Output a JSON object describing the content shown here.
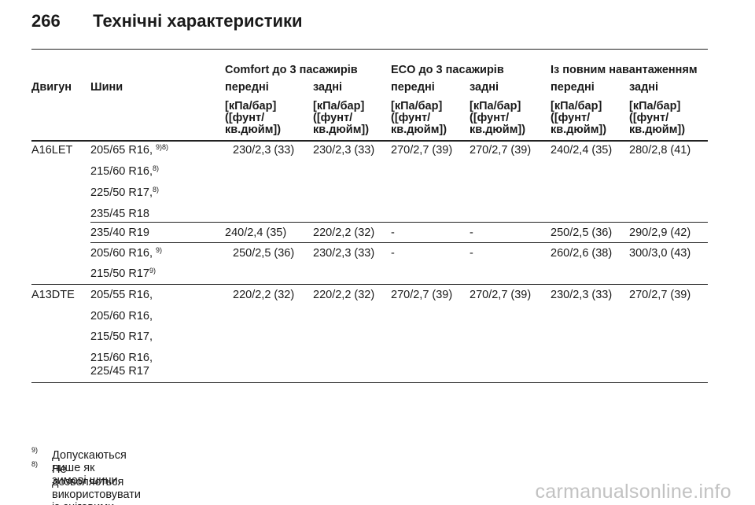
{
  "header": {
    "page_number": "266",
    "title": "Технічні характеристики"
  },
  "table": {
    "groups": [
      "Comfort до 3 пасажирів",
      "ECO до 3 пасажирів",
      "Із повним навантаженням"
    ],
    "col_engine": "Двигун",
    "col_tires": "Шини",
    "pos_front": "передні",
    "pos_rear": "задні",
    "unit_l1": "[кПа/бар]",
    "unit_l2": "([фунт/",
    "unit_l3": "кв.дюйм])",
    "sections": [
      {
        "engine": "A16LET",
        "tires": [
          {
            "size": "205/65 R16, ",
            "note": "9)8)"
          },
          {
            "size": "215/60 R16,",
            "note": "8)"
          },
          {
            "size": "225/50 R17,",
            "note": "8)"
          },
          {
            "size": "235/45 R18",
            "note": ""
          }
        ],
        "values": [
          "230/2,3 (33)",
          "230/2,3 (33)",
          "270/2,7 (39)",
          "270/2,7 (39)",
          "240/2,4 (35)",
          "280/2,8 (41)"
        ]
      },
      {
        "engine": "",
        "tires": [
          {
            "size": "235/40 R19",
            "note": ""
          }
        ],
        "values": [
          "240/2,4 (35)",
          "220/2,2 (32)",
          "-",
          "-",
          "250/2,5 (36)",
          "290/2,9 (42)"
        ]
      },
      {
        "engine": "",
        "tires": [
          {
            "size": "205/60 R16, ",
            "note": "9)"
          },
          {
            "size": "215/50 R17",
            "note": "9)"
          }
        ],
        "values": [
          "250/2,5 (36)",
          "230/2,3 (33)",
          "-",
          "-",
          "260/2,6 (38)",
          "300/3,0 (43)"
        ]
      },
      {
        "engine": "A13DTE",
        "tires": [
          {
            "size": "205/55 R16,",
            "note": ""
          },
          {
            "size": "205/60 R16,",
            "note": ""
          },
          {
            "size": "215/50 R17,",
            "note": ""
          },
          {
            "size": "215/60 R16,",
            "note": ""
          },
          {
            "size": "225/45 R17",
            "note": ""
          }
        ],
        "values": [
          "220/2,2 (32)",
          "220/2,2 (32)",
          "270/2,7 (39)",
          "270/2,7 (39)",
          "230/2,3 (33)",
          "270/2,7 (39)"
        ]
      }
    ]
  },
  "footnotes": [
    {
      "mark": "9)",
      "text": "Допускаються лише як зимові шини."
    },
    {
      "mark": "8)",
      "text": "Не дозволяється використовувати із сніговими ланцюгами."
    }
  ],
  "watermark": "carmanualsonline.info"
}
